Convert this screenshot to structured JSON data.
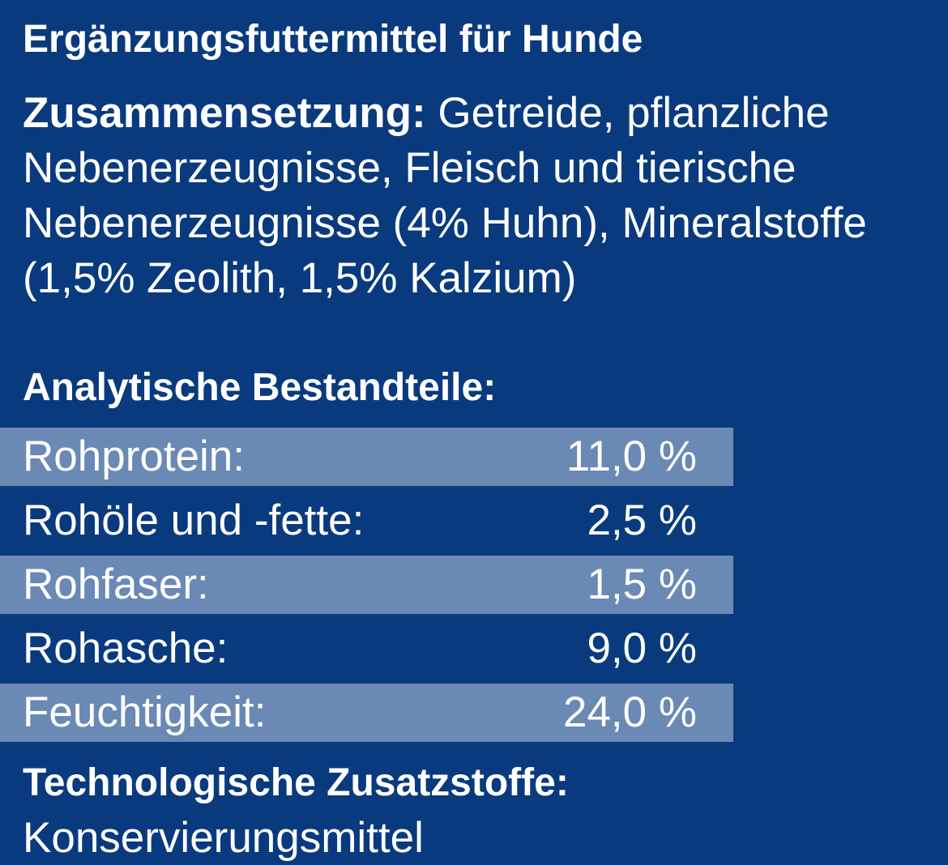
{
  "product": {
    "title": "Ergänzungsfuttermittel für Hunde"
  },
  "composition": {
    "heading": "Zusammensetzung:",
    "line1_text": " Getreide, pflanzliche",
    "line2": "Nebenerzeugnisse, Fleisch und tierische",
    "line3": "Nebenerzeugnisse (4% Huhn), Mineralstoffe",
    "line4": "(1,5% Zeolith, 1,5% Kalzium)"
  },
  "analysis": {
    "heading": "Analytische Bestandteile:",
    "rows": [
      {
        "label": "Rohprotein:",
        "value": "11,0 %"
      },
      {
        "label": "Rohöle und -fette:",
        "value": "2,5 %"
      },
      {
        "label": "Rohfaser:",
        "value": "1,5 %"
      },
      {
        "label": "Rohasche:",
        "value": "9,0 %"
      },
      {
        "label": "Feuchtigkeit:",
        "value": "24,0 %"
      }
    ]
  },
  "additives": {
    "heading": "Technologische Zusatzstoffe:",
    "value": "Konservierungsmittel"
  },
  "colors": {
    "background": "#0a3a7e",
    "row_highlight": "#6a89b4",
    "text": "#ffffff"
  }
}
